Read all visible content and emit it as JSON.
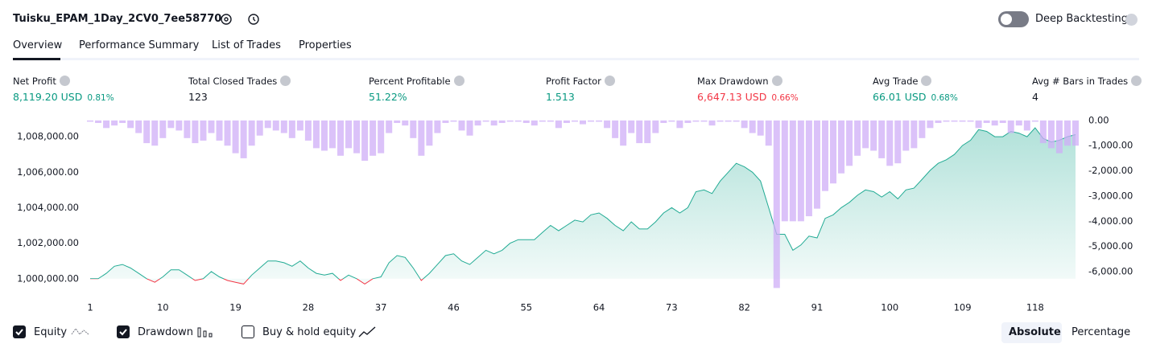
{
  "header": {
    "title": "Tuisku_EPAM_1Day_2CV0_7ee58770",
    "toggle_label": "Deep Backtesting"
  },
  "tabs": [
    "Overview",
    "Performance Summary",
    "List of Trades",
    "Properties"
  ],
  "metrics": [
    {
      "label": "Net Profit",
      "value": "8,119.20 USD",
      "percent": "0.81%",
      "color": "#089981"
    },
    {
      "label": "Total Closed Trades",
      "value": "123",
      "color": "#131722"
    },
    {
      "label": "Percent Profitable",
      "value": "51.22%",
      "color": "#089981"
    },
    {
      "label": "Profit Factor",
      "value": "1.513",
      "color": "#089981"
    },
    {
      "label": "Max Drawdown",
      "value": "6,647.13 USD",
      "percent": "0.66%",
      "color": "#f23645"
    },
    {
      "label": "Avg Trade",
      "value": "66.01 USD",
      "percent": "0.68%",
      "color": "#089981"
    },
    {
      "label": "Avg # Bars in Trades",
      "value": "4",
      "color": "#131722"
    }
  ],
  "chart_data": {
    "type": "equity_drawdown",
    "x": [
      1,
      2,
      3,
      4,
      5,
      6,
      7,
      8,
      9,
      10,
      11,
      12,
      13,
      14,
      15,
      16,
      17,
      18,
      19,
      20,
      21,
      22,
      23,
      24,
      25,
      26,
      27,
      28,
      29,
      30,
      31,
      32,
      33,
      34,
      35,
      36,
      37,
      38,
      39,
      40,
      41,
      42,
      43,
      44,
      45,
      46,
      47,
      48,
      49,
      50,
      51,
      52,
      53,
      54,
      55,
      56,
      57,
      58,
      59,
      60,
      61,
      62,
      63,
      64,
      65,
      66,
      67,
      68,
      69,
      70,
      71,
      72,
      73,
      74,
      75,
      76,
      77,
      78,
      79,
      80,
      81,
      82,
      83,
      84,
      85,
      86,
      87,
      88,
      89,
      90,
      91,
      92,
      93,
      94,
      95,
      96,
      97,
      98,
      99,
      100,
      101,
      102,
      103,
      104,
      105,
      106,
      107,
      108,
      109,
      110,
      111,
      112,
      113,
      114,
      115,
      116,
      117,
      118,
      119,
      120,
      121,
      122,
      123
    ],
    "series": [
      {
        "name": "Equity",
        "color": "#22ab94",
        "negative_color": "#f23645",
        "values": [
          1000000,
          1000000,
          1000300,
          1000700,
          1000800,
          1000600,
          1000300,
          1000000,
          999800,
          1000100,
          1000500,
          1000500,
          1000200,
          999900,
          1000000,
          1000400,
          1000100,
          999900,
          999800,
          999700,
          1000200,
          1000600,
          1001000,
          1001000,
          1000900,
          1000700,
          1001000,
          1000600,
          1000300,
          1000200,
          1000300,
          999900,
          1000200,
          1000000,
          999700,
          1000000,
          1000100,
          1000900,
          1001300,
          1001200,
          1000600,
          999900,
          1000300,
          1000800,
          1001300,
          1001400,
          1001000,
          1000800,
          1001200,
          1001600,
          1001400,
          1001600,
          1002000,
          1002200,
          1002200,
          1002200,
          1002600,
          1003000,
          1002700,
          1003000,
          1003300,
          1003200,
          1003600,
          1003700,
          1003400,
          1003000,
          1002700,
          1003200,
          1002800,
          1002800,
          1003200,
          1003700,
          1004000,
          1003700,
          1004000,
          1004900,
          1005000,
          1004800,
          1005500,
          1006000,
          1006500,
          1006300,
          1006000,
          1005500,
          1004000,
          1002500,
          1002500,
          1001600,
          1001900,
          1002400,
          1002300,
          1003400,
          1003600,
          1004000,
          1004300,
          1004700,
          1005000,
          1004900,
          1004600,
          1004900,
          1004500,
          1005000,
          1005100,
          1005600,
          1006100,
          1006500,
          1006700,
          1007000,
          1007500,
          1007800,
          1008400,
          1008300,
          1008000,
          1008000,
          1008300,
          1008200,
          1008000,
          1008500,
          1007900,
          1007700,
          1007800,
          1008000,
          1008119.2
        ]
      },
      {
        "name": "Drawdown",
        "color": "#cfadf7",
        "axis": "y2",
        "values": [
          -50,
          -100,
          -300,
          -200,
          -100,
          -300,
          -500,
          -900,
          -1000,
          -700,
          -300,
          -400,
          -700,
          -900,
          -800,
          -500,
          -800,
          -1000,
          -1300,
          -1500,
          -1000,
          -600,
          -300,
          -400,
          -500,
          -700,
          -400,
          -800,
          -1100,
          -1200,
          -1100,
          -1400,
          -1100,
          -1300,
          -1600,
          -1400,
          -1300,
          -500,
          -100,
          -200,
          -700,
          -1400,
          -1000,
          -500,
          -100,
          -50,
          -400,
          -600,
          -200,
          -50,
          -200,
          -100,
          -50,
          -50,
          -100,
          -200,
          -50,
          -50,
          -300,
          -100,
          -50,
          -150,
          -50,
          -50,
          -300,
          -700,
          -1000,
          -500,
          -900,
          -900,
          -500,
          -100,
          -50,
          -300,
          -100,
          -50,
          -50,
          -200,
          -50,
          -50,
          -50,
          -300,
          -500,
          -600,
          -1000,
          -6647.13,
          -4000,
          -4000,
          -4000,
          -3800,
          -3500,
          -2800,
          -2500,
          -2100,
          -1800,
          -1400,
          -1100,
          -1200,
          -1500,
          -1800,
          -1700,
          -1200,
          -1100,
          -700,
          -300,
          -100,
          -50,
          -50,
          -50,
          -50,
          -300,
          -100,
          -200,
          -100,
          -500,
          -200,
          -400,
          -50,
          -900,
          -1100,
          -1300,
          -1000,
          -1000
        ]
      }
    ],
    "xlim": [
      1,
      123
    ],
    "xticks": [
      1,
      10,
      19,
      28,
      37,
      46,
      55,
      64,
      73,
      82,
      91,
      100,
      109,
      118
    ],
    "ylim": [
      999400,
      1009000
    ],
    "yticks": [
      {
        "value": 1000000,
        "label": "1,000,000.00"
      },
      {
        "value": 1002000,
        "label": "1,002,000.00"
      },
      {
        "value": 1004000,
        "label": "1,004,000.00"
      },
      {
        "value": 1006000,
        "label": "1,006,000.00"
      },
      {
        "value": 1008000,
        "label": "1,008,000.00"
      }
    ],
    "y2lim": [
      -6700,
      60
    ],
    "y2ticks": [
      {
        "value": 0,
        "label": "0.00"
      },
      {
        "value": -1000,
        "label": "-1,000.00"
      },
      {
        "value": -2000,
        "label": "-2,000.00"
      },
      {
        "value": -3000,
        "label": "-3,000.00"
      },
      {
        "value": -4000,
        "label": "-4,000.00"
      },
      {
        "value": -5000,
        "label": "-5,000.00"
      },
      {
        "value": -6000,
        "label": "-6,000.00"
      }
    ]
  },
  "legend": {
    "items": [
      "Equity",
      "Drawdown",
      "Buy & hold equity"
    ],
    "modes": [
      "Absolute",
      "Percentage"
    ]
  }
}
